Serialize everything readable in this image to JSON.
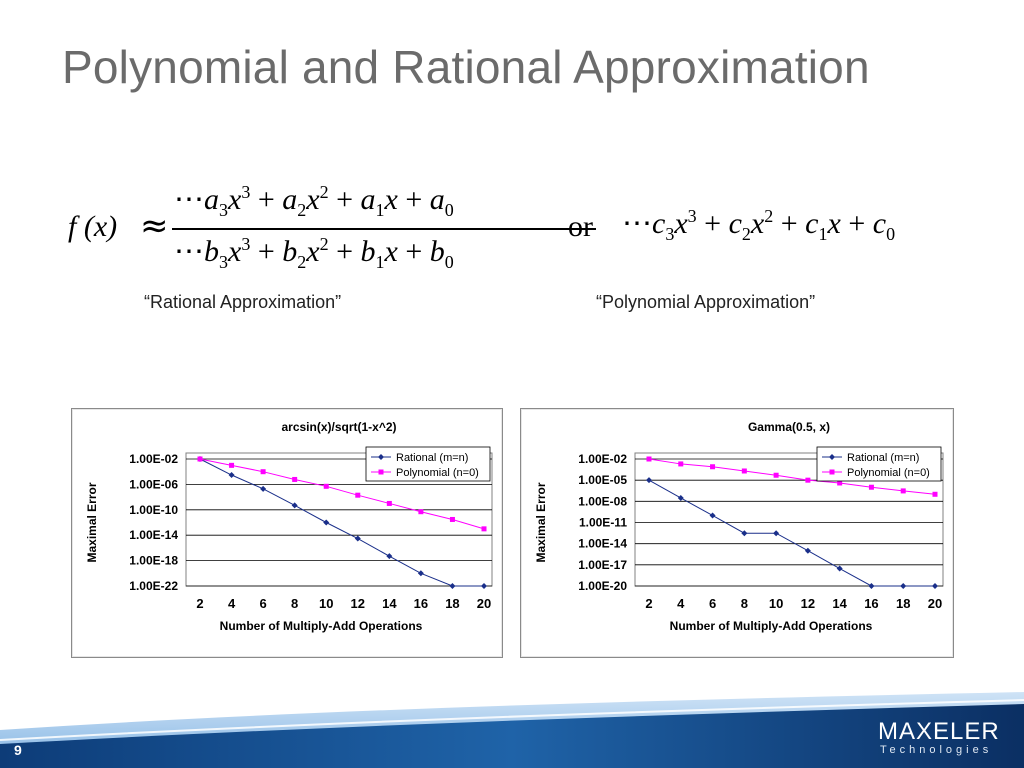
{
  "slide": {
    "title": "Polynomial and Rational Approximation",
    "page_number": "9",
    "logo_text": "MAXELER",
    "logo_subtext": "Technologies"
  },
  "formula": {
    "lhs": "f (x)",
    "approx_symbol": "≈",
    "or_word": "or"
  },
  "captions": {
    "rational": "“Rational Approximation”",
    "polynomial": "“Polynomial Approximation”"
  },
  "colors": {
    "rational": "#1a2f8a",
    "polynomial": "#ff00ff",
    "title": "#6b6b6b",
    "footer_blue": "#1f63a8"
  },
  "chart_data": [
    {
      "type": "line",
      "title": "arcsin(x)/sqrt(1-x^2)",
      "xlabel": "Number of Multiply-Add Operations",
      "ylabel": "Maximal Error",
      "y_scale": "log",
      "x_ticks": [
        2,
        4,
        6,
        8,
        10,
        12,
        14,
        16,
        18,
        20
      ],
      "y_ticks": [
        0.01,
        1e-06,
        1e-10,
        1e-14,
        1e-18,
        1e-22
      ],
      "y_tick_labels": [
        "1.00E-02",
        "1.00E-06",
        "1.00E-10",
        "1.00E-14",
        "1.00E-18",
        "1.00E-22"
      ],
      "xlim": [
        2,
        20
      ],
      "ylim_exp": [
        -22,
        -2
      ],
      "grid": true,
      "legend_position": "top-right",
      "series": [
        {
          "name": "Rational (m=n)",
          "x": [
            2,
            4,
            6,
            8,
            10,
            12,
            14,
            16,
            18,
            20
          ],
          "y": [
            0.01,
            3e-05,
            2e-07,
            5e-10,
            1e-12,
            3e-15,
            5e-18,
            1e-20,
            1e-22,
            1e-22
          ]
        },
        {
          "name": "Polynomial (n=0)",
          "x": [
            2,
            4,
            6,
            8,
            10,
            12,
            14,
            16,
            18,
            20
          ],
          "y": [
            0.01,
            0.001,
            0.0001,
            6e-06,
            5e-07,
            2e-08,
            1e-09,
            5e-11,
            3e-12,
            1e-13
          ]
        }
      ]
    },
    {
      "type": "line",
      "title": "Gamma(0.5, x)",
      "xlabel": "Number of Multiply-Add Operations",
      "ylabel": "Maximal Error",
      "y_scale": "log",
      "x_ticks": [
        2,
        4,
        6,
        8,
        10,
        12,
        14,
        16,
        18,
        20
      ],
      "y_ticks": [
        0.01,
        1e-05,
        1e-08,
        1e-11,
        1e-14,
        1e-17,
        1e-20
      ],
      "y_tick_labels": [
        "1.00E-02",
        "1.00E-05",
        "1.00E-08",
        "1.00E-11",
        "1.00E-14",
        "1.00E-17",
        "1.00E-20"
      ],
      "xlim": [
        2,
        20
      ],
      "ylim_exp": [
        -20,
        -2
      ],
      "grid": true,
      "legend_position": "top-right",
      "series": [
        {
          "name": "Rational (m=n)",
          "x": [
            2,
            4,
            6,
            8,
            10,
            12,
            14,
            16,
            18,
            20
          ],
          "y": [
            1e-05,
            3e-08,
            1e-10,
            3e-13,
            3e-13,
            1e-15,
            3e-18,
            1e-20,
            1e-20,
            1e-20
          ]
        },
        {
          "name": "Polynomial (n=0)",
          "x": [
            2,
            4,
            6,
            8,
            10,
            12,
            14,
            16,
            18,
            20
          ],
          "y": [
            0.01,
            0.002,
            0.0008,
            0.0002,
            5e-05,
            1e-05,
            4e-06,
            1e-06,
            3e-07,
            1e-07
          ]
        }
      ]
    }
  ]
}
